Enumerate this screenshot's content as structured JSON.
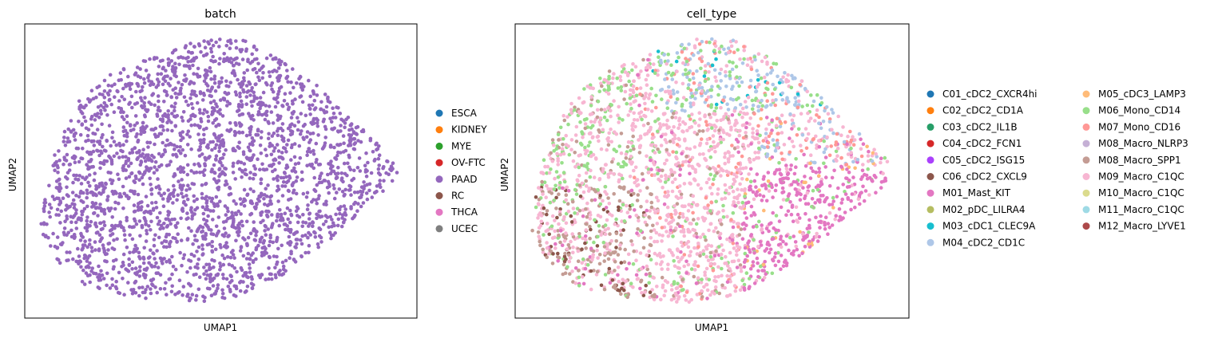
{
  "chart_data": [
    {
      "type": "scatter",
      "title": "batch",
      "xlabel": "UMAP1",
      "ylabel": "UMAP2",
      "x_ticks": [],
      "y_ticks": [],
      "grid": false,
      "legend_position": "right",
      "legend": [
        {
          "label": "ESCA",
          "color": "#1f77b4"
        },
        {
          "label": "KIDNEY",
          "color": "#ff7f0e"
        },
        {
          "label": "MYE",
          "color": "#2ca02c"
        },
        {
          "label": "OV-FTC",
          "color": "#d62728"
        },
        {
          "label": "PAAD",
          "color": "#9467bd"
        },
        {
          "label": "RC",
          "color": "#8c564b"
        },
        {
          "label": "THCA",
          "color": "#e377c2"
        },
        {
          "label": "UCEC",
          "color": "#7f7f7f"
        }
      ],
      "series": [
        {
          "name": "PAAD",
          "color": "#9467bd",
          "approx_points": 2600
        }
      ]
    },
    {
      "type": "scatter",
      "title": "cell_type",
      "xlabel": "UMAP1",
      "ylabel": "UMAP2",
      "x_ticks": [],
      "y_ticks": [],
      "grid": false,
      "legend_position": "right",
      "legend": [
        {
          "label": "C01_cDC2_CXCR4hi",
          "color": "#1f77b4"
        },
        {
          "label": "C02_cDC2_CD1A",
          "color": "#ff7f0e"
        },
        {
          "label": "C03_cDC2_IL1B",
          "color": "#279e68"
        },
        {
          "label": "C04_cDC2_FCN1",
          "color": "#d62728"
        },
        {
          "label": "C05_cDC2_ISG15",
          "color": "#aa40fc"
        },
        {
          "label": "C06_cDC2_CXCL9",
          "color": "#8c564b"
        },
        {
          "label": "M01_Mast_KIT",
          "color": "#e377c2"
        },
        {
          "label": "M02_pDC_LILRA4",
          "color": "#b5bd61"
        },
        {
          "label": "M03_cDC1_CLEC9A",
          "color": "#17becf"
        },
        {
          "label": "M04_cDC2_CD1C",
          "color": "#aec7e8"
        },
        {
          "label": "M05_cDC3_LAMP3",
          "color": "#ffbb78"
        },
        {
          "label": "M06_Mono_CD14",
          "color": "#98df8a"
        },
        {
          "label": "M07_Mono_CD16",
          "color": "#ff9896"
        },
        {
          "label": "M08_Macro_NLRP3",
          "color": "#c5b0d5"
        },
        {
          "label": "M08_Macro_SPP1",
          "color": "#c49c94"
        },
        {
          "label": "M09_Macro_C1QC",
          "color": "#f7b6d2"
        },
        {
          "label": "M10_Macro_C1QC",
          "color": "#dbdb8d"
        },
        {
          "label": "M11_Macro_C1QC",
          "color": "#9edae5"
        },
        {
          "label": "M12_Macro_LYVE1",
          "color": "#ad494a"
        }
      ],
      "series": [
        {
          "name": "M09_Macro_C1QC",
          "color": "#f7b6d2"
        },
        {
          "name": "M01_Mast_KIT",
          "color": "#e377c2"
        },
        {
          "name": "M04_cDC2_CD1C",
          "color": "#aec7e8"
        },
        {
          "name": "M06_Mono_CD14",
          "color": "#98df8a"
        },
        {
          "name": "M08_Macro_SPP1",
          "color": "#c49c94"
        },
        {
          "name": "M07_Mono_CD16",
          "color": "#ff9896"
        },
        {
          "name": "C06_cDC2_CXCL9",
          "color": "#8c564b"
        },
        {
          "name": "M03_cDC1_CLEC9A",
          "color": "#17becf"
        },
        {
          "name": "M05_cDC3_LAMP3",
          "color": "#ffbb78"
        }
      ]
    }
  ]
}
